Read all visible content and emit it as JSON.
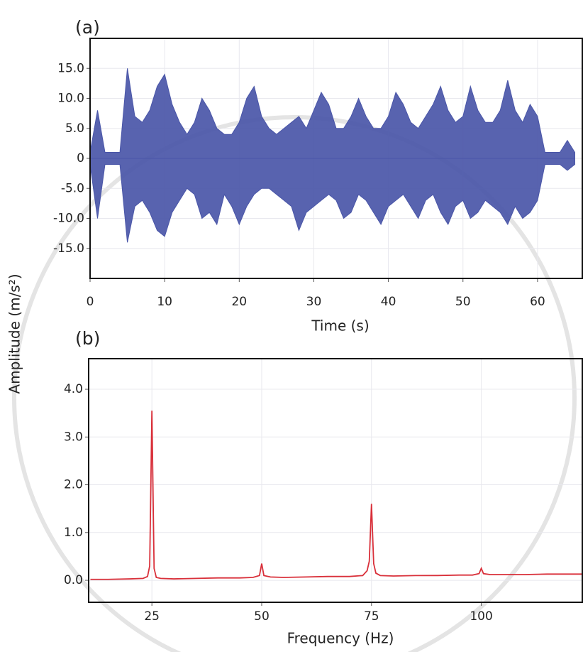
{
  "chart_data": [
    {
      "type": "area",
      "panel_label": "(a)",
      "ylabel": "Amplitude (m/s²)",
      "xlabel": "Time (s)",
      "x": [
        0,
        1,
        2,
        3,
        4,
        5,
        6,
        7,
        8,
        9,
        10,
        11,
        12,
        13,
        14,
        15,
        16,
        17,
        18,
        19,
        20,
        21,
        22,
        23,
        24,
        25,
        26,
        27,
        28,
        29,
        30,
        31,
        32,
        33,
        34,
        35,
        36,
        37,
        38,
        39,
        40,
        41,
        42,
        43,
        44,
        45,
        46,
        47,
        48,
        49,
        50,
        51,
        52,
        53,
        54,
        55,
        56,
        57,
        58,
        59,
        60,
        61,
        62,
        63,
        64,
        65
      ],
      "series": [
        {
          "color": "#4a56a8",
          "values": [
            1,
            8,
            1,
            1,
            1,
            15,
            7,
            6,
            8,
            12,
            14,
            9,
            6,
            4,
            6,
            10,
            8,
            5,
            4,
            4,
            6,
            10,
            12,
            7,
            5,
            4,
            5,
            6,
            7,
            5,
            8,
            11,
            9,
            5,
            5,
            7,
            10,
            7,
            5,
            5,
            7,
            11,
            9,
            6,
            5,
            7,
            9,
            12,
            8,
            6,
            7,
            12,
            8,
            6,
            6,
            8,
            13,
            8,
            6,
            9,
            7,
            1,
            1,
            1,
            3,
            1
          ]
        },
        {
          "color": "#4a56a8",
          "values": [
            -1,
            -10,
            -1,
            -1,
            -1,
            -14,
            -8,
            -7,
            -9,
            -12,
            -13,
            -9,
            -7,
            -5,
            -6,
            -10,
            -9,
            -11,
            -6,
            -8,
            -11,
            -8,
            -6,
            -5,
            -5,
            -6,
            -7,
            -8,
            -12,
            -9,
            -8,
            -7,
            -6,
            -7,
            -10,
            -9,
            -6,
            -7,
            -9,
            -11,
            -8,
            -7,
            -6,
            -8,
            -10,
            -7,
            -6,
            -9,
            -11,
            -8,
            -7,
            -10,
            -9,
            -7,
            -8,
            -9,
            -11,
            -8,
            -10,
            -9,
            -7,
            -1,
            -1,
            -1,
            -2,
            -1
          ]
        }
      ],
      "xlim": [
        0,
        66
      ],
      "ylim": [
        -20,
        20
      ],
      "xticks": [
        0,
        10,
        20,
        30,
        40,
        50,
        60
      ],
      "yticks": [
        {
          "value": 15,
          "label": "15.0"
        },
        {
          "value": 10,
          "label": "10.0"
        },
        {
          "value": 5,
          "label": "5.0"
        },
        0,
        {
          "value": -5,
          "label": "-5.0"
        },
        {
          "value": -10,
          "label": "-10.0"
        },
        {
          "value": -15,
          "label": "-15.0"
        }
      ],
      "grid": true
    },
    {
      "type": "line",
      "panel_label": "(b)",
      "xlabel": "Frequency (Hz)",
      "x": [
        11,
        15,
        20,
        23,
        24,
        24.5,
        25,
        25.5,
        26,
        27,
        30,
        35,
        40,
        45,
        48,
        49.5,
        50,
        50.5,
        52,
        55,
        60,
        65,
        70,
        73,
        74,
        74.5,
        75,
        75.5,
        76,
        77,
        80,
        85,
        90,
        95,
        98,
        99.5,
        100,
        100.5,
        102,
        105,
        110,
        115,
        120,
        123
      ],
      "series": [
        {
          "color": "#d9303a",
          "values": [
            0.02,
            0.02,
            0.03,
            0.04,
            0.08,
            0.3,
            3.55,
            0.25,
            0.06,
            0.04,
            0.03,
            0.04,
            0.05,
            0.05,
            0.06,
            0.1,
            0.35,
            0.1,
            0.07,
            0.06,
            0.07,
            0.08,
            0.08,
            0.1,
            0.2,
            0.4,
            1.6,
            0.35,
            0.15,
            0.1,
            0.09,
            0.1,
            0.1,
            0.11,
            0.11,
            0.14,
            0.25,
            0.14,
            0.12,
            0.12,
            0.12,
            0.13,
            0.13,
            0.13
          ]
        }
      ],
      "xlim": [
        10.6,
        123
      ],
      "ylim": [
        -0.46,
        4.64
      ],
      "xticks": [
        25,
        50,
        75,
        100
      ],
      "yticks": [
        {
          "value": 0,
          "label": "0.0"
        },
        {
          "value": 1,
          "label": "1.0"
        },
        {
          "value": 2,
          "label": "2.0"
        },
        {
          "value": 3,
          "label": "3.0"
        },
        {
          "value": 4,
          "label": "4.0"
        }
      ],
      "grid": true
    }
  ]
}
